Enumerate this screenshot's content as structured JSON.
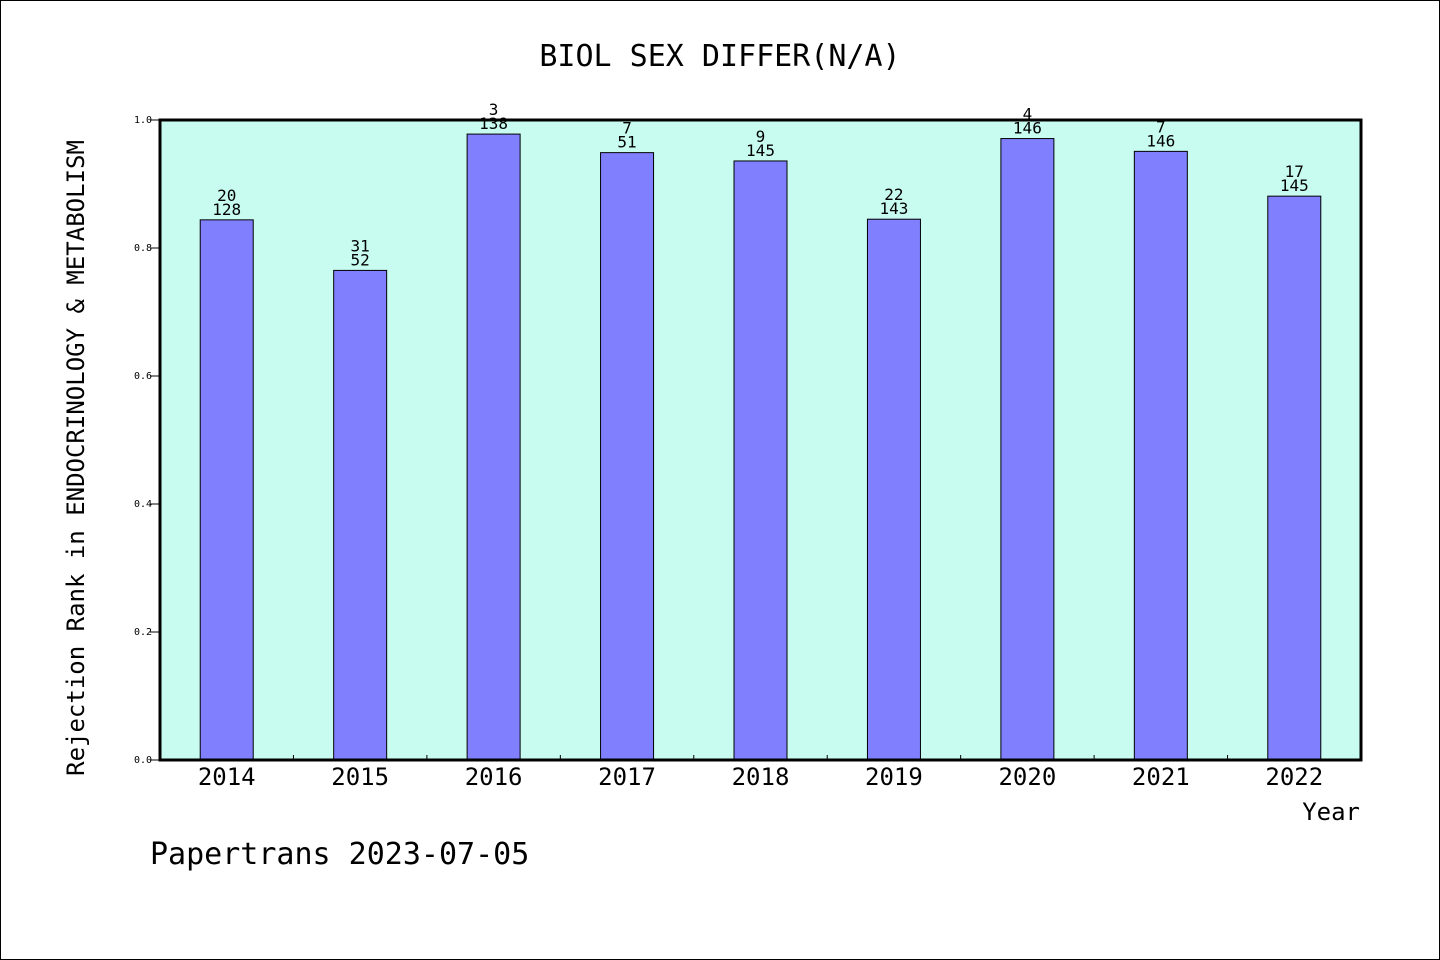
{
  "chart_data": {
    "type": "bar",
    "title": "BIOL SEX DIFFER(N/A)",
    "xlabel": "Year",
    "ylabel": "Rejection Rank in ENDOCRINOLOGY & METABOLISM",
    "categories": [
      "2014",
      "2015",
      "2016",
      "2017",
      "2018",
      "2019",
      "2020",
      "2021",
      "2022"
    ],
    "values": [
      0.844,
      0.765,
      0.978,
      0.949,
      0.936,
      0.845,
      0.971,
      0.951,
      0.881
    ],
    "rank_labels": [
      "20",
      "31",
      "3",
      "7",
      "9",
      "22",
      "4",
      "7",
      "17"
    ],
    "total_labels": [
      "128",
      "52",
      "138",
      "51",
      "145",
      "143",
      "146",
      "146",
      "145"
    ],
    "yticks": [
      "0.0",
      "0.2",
      "0.4",
      "0.6",
      "0.8",
      "1.0"
    ],
    "ylim": [
      0,
      1.0
    ],
    "grid": false,
    "legend": "none",
    "colors": {
      "bar_fill": "#8080ff",
      "plot_background": "#c8fcf0",
      "border": "#000000"
    }
  },
  "footer": {
    "credit": "Papertrans 2023-07-05"
  }
}
